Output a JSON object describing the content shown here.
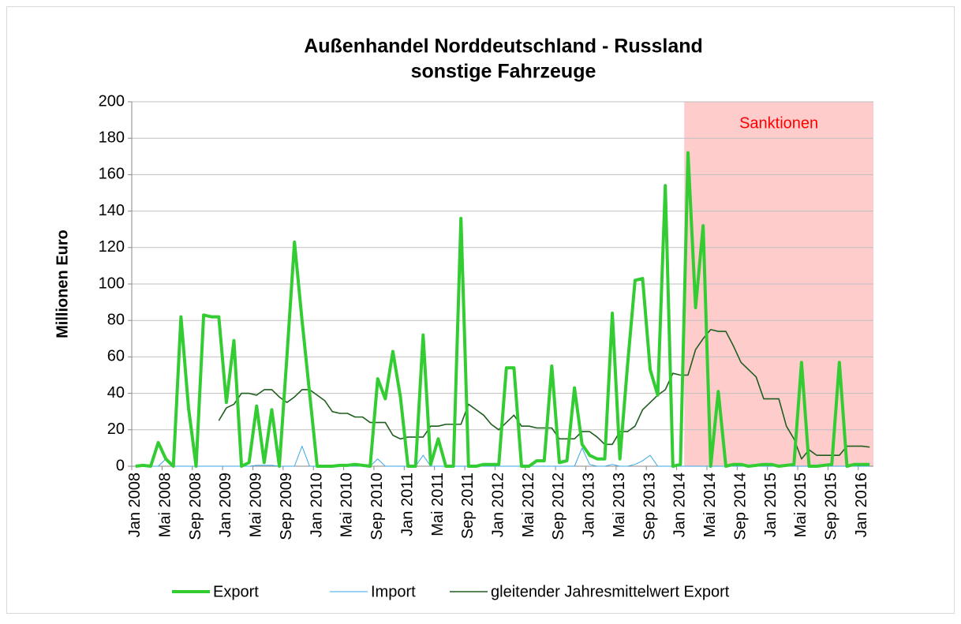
{
  "chart_data": {
    "type": "line",
    "title": "Außenhandel Norddeutschland - Russland",
    "subtitle": "sonstige Fahrzeuge",
    "y_label": "Millionen Euro",
    "categories": [
      "Jan 2008",
      null,
      null,
      null,
      "Mai 2008",
      null,
      null,
      null,
      "Sep 2008",
      null,
      null,
      null,
      "Jan 2009",
      null,
      null,
      null,
      "Mai 2009",
      null,
      null,
      null,
      "Sep 2009",
      null,
      null,
      null,
      "Jan 2010",
      null,
      null,
      null,
      "Mai 2010",
      null,
      null,
      null,
      "Sep 2010",
      null,
      null,
      null,
      "Jan 2011",
      null,
      null,
      null,
      "Mai 2011",
      null,
      null,
      null,
      "Sep 2011",
      null,
      null,
      null,
      "Jan 2012",
      null,
      null,
      null,
      "Mai 2012",
      null,
      null,
      null,
      "Sep 2012",
      null,
      null,
      null,
      "Jan 2013",
      null,
      null,
      null,
      "Mai 2013",
      null,
      null,
      null,
      "Sep 2013",
      null,
      null,
      null,
      "Jan 2014",
      null,
      null,
      null,
      "Mai 2014",
      null,
      null,
      null,
      "Sep 2014",
      null,
      null,
      null,
      "Jan 2015",
      null,
      null,
      null,
      "Mai 2015",
      null,
      null,
      null,
      "Sep 2015",
      null,
      null,
      null,
      "Jan 2016",
      null
    ],
    "series": [
      {
        "name": "Export",
        "color": "#33cc33",
        "width": 4,
        "values": [
          0,
          0.5,
          0,
          13,
          4,
          0,
          82,
          32,
          0,
          83,
          82,
          82,
          35,
          69,
          0,
          2,
          33,
          2,
          31,
          0,
          60,
          123,
          80,
          40,
          0,
          0,
          0,
          0.5,
          0.5,
          1,
          0.5,
          0,
          48,
          37,
          63,
          38,
          0,
          0,
          72,
          1,
          15,
          0,
          0,
          136,
          0,
          0,
          1,
          1,
          1,
          54,
          54,
          0,
          0,
          3,
          3,
          55,
          2,
          3,
          43,
          12,
          6,
          4,
          4,
          84,
          4,
          55,
          102,
          103,
          53,
          39,
          154,
          0,
          1,
          172,
          87,
          132,
          0,
          41,
          0,
          1,
          1,
          0,
          0.5,
          1,
          1,
          0,
          0.5,
          1,
          57,
          0,
          0,
          0.5,
          1,
          57,
          0,
          1,
          1,
          1
        ]
      },
      {
        "name": "Import",
        "color": "#3aa6e8",
        "width": 1,
        "values": [
          0,
          0,
          0,
          0,
          4,
          0,
          0,
          0,
          0,
          0,
          0,
          0,
          0,
          0,
          0,
          0,
          0.5,
          0.5,
          0.5,
          0,
          0,
          0,
          11,
          0,
          0,
          0,
          0,
          0,
          0,
          0,
          0,
          0,
          4,
          0,
          0,
          0,
          0,
          0,
          6,
          0,
          0,
          0,
          0,
          0,
          0,
          0,
          0,
          0,
          0,
          0,
          0,
          0,
          0,
          0,
          0,
          0,
          0,
          0,
          0,
          10,
          1,
          0,
          0,
          1,
          0,
          0,
          1,
          3,
          6,
          0,
          0,
          0,
          0,
          0,
          0,
          0,
          0,
          0,
          0,
          0,
          0,
          0,
          0,
          0,
          0,
          0,
          0,
          0,
          0,
          0,
          0,
          0,
          0,
          0,
          0,
          0,
          0,
          0
        ]
      },
      {
        "name": "gleitender Jahresmittelwert Export",
        "color": "#1e5e1e",
        "width": 1.6,
        "values": [
          null,
          null,
          null,
          null,
          null,
          null,
          null,
          null,
          null,
          null,
          null,
          25,
          32,
          34,
          40,
          40,
          39,
          42,
          42,
          38,
          35,
          38,
          42,
          42,
          39,
          36,
          30,
          29,
          29,
          27,
          27,
          24,
          24,
          24,
          17,
          15,
          16,
          16,
          16,
          22,
          22,
          23,
          23,
          23,
          34,
          31,
          28,
          23,
          20,
          24,
          28,
          22,
          22,
          21,
          21,
          21,
          15,
          15,
          15,
          19,
          19,
          16,
          12,
          12,
          19,
          19,
          22,
          31,
          35,
          39,
          42,
          51,
          50,
          50,
          64,
          70,
          75,
          74,
          74,
          66,
          57,
          53,
          49,
          37,
          37,
          37,
          22,
          15,
          4,
          9,
          6,
          6,
          6,
          6,
          11,
          11,
          11,
          10.5
        ]
      }
    ],
    "shade": {
      "label": "Sanktionen",
      "from_index": 73,
      "color": "#ffcccc",
      "label_color": "#ff0000"
    },
    "ylim": [
      0,
      200
    ],
    "yticks": [
      0,
      20,
      40,
      60,
      80,
      100,
      120,
      140,
      160,
      180,
      200
    ],
    "grid": true,
    "legend": "bottom"
  }
}
